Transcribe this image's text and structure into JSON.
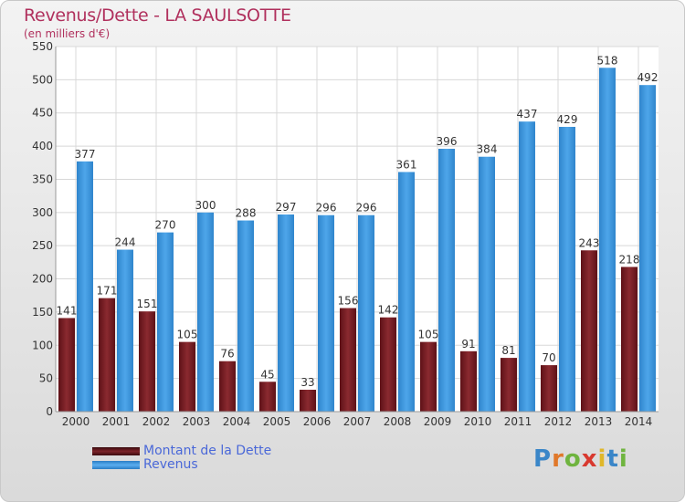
{
  "header": {
    "title": "Revenus/Dette - LA SAULSOTTE",
    "subtitle": "(en milliers d'€)"
  },
  "legend": {
    "items": [
      {
        "label": "Montant de la Dette",
        "color": "#6b1a1f"
      },
      {
        "label": "Revenus",
        "color": "#3d97dd"
      }
    ]
  },
  "logo": {
    "letters": [
      "P",
      "r",
      "o",
      "x",
      "i",
      "t",
      "i"
    ],
    "colors": [
      "#3a86c8",
      "#e0782a",
      "#6fb43f",
      "#d8392f",
      "#e0b72a",
      "#3a86c8",
      "#6fb43f"
    ]
  },
  "chart_data": {
    "type": "bar",
    "categories": [
      "2000",
      "2001",
      "2002",
      "2003",
      "2004",
      "2005",
      "2006",
      "2007",
      "2008",
      "2009",
      "2010",
      "2011",
      "2012",
      "2013",
      "2014"
    ],
    "series": [
      {
        "name": "Montant de la Dette",
        "color": "#7d2429",
        "values": [
          141,
          171,
          151,
          105,
          76,
          45,
          33,
          156,
          142,
          105,
          91,
          81,
          70,
          243,
          218
        ]
      },
      {
        "name": "Revenus",
        "color": "#3d97dd",
        "values": [
          377,
          244,
          270,
          300,
          288,
          297,
          296,
          296,
          361,
          396,
          384,
          437,
          429,
          518,
          492
        ]
      }
    ],
    "value_labels": {
      "debt": [
        "141",
        "171",
        "151",
        "105",
        "76",
        "45",
        "33",
        "156",
        "142",
        "105",
        "91",
        "81",
        "70",
        "243",
        "218"
      ],
      "revenue": [
        "377",
        "244",
        "270",
        "300",
        "288",
        "297",
        "296",
        "296",
        "361",
        "396",
        "384",
        "437",
        "429",
        "518",
        "492"
      ]
    },
    "ylim": [
      0,
      550
    ],
    "yticks": [
      "0",
      "50",
      "100",
      "150",
      "200",
      "250",
      "300",
      "350",
      "400",
      "450",
      "500",
      "550"
    ],
    "grid": true,
    "legend": "bottom-left"
  }
}
